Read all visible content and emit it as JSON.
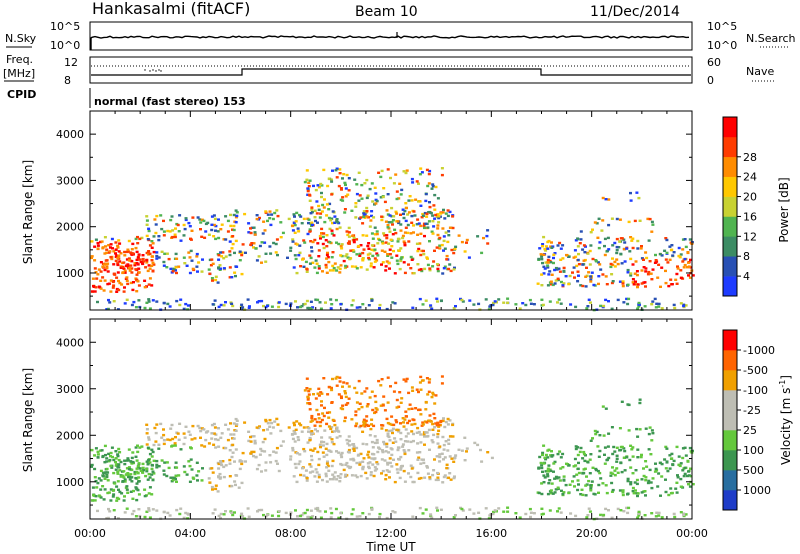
{
  "header": {
    "station": "Hankasalmi (fitACF)",
    "beam": "Beam 10",
    "date": "11/Dec/2014"
  },
  "strip": {
    "nsky_label": "N.Sky",
    "nsearch_label": "N.Search",
    "nsky_ticks": [
      "10^5",
      "10^0"
    ],
    "freq_label": "Freq.",
    "freq_unit": "[MHz]",
    "freq_ticks": [
      "12",
      "8"
    ],
    "nave_label": "Nave",
    "nave_ticks": [
      "60",
      "0"
    ],
    "cpid_label": "CPID",
    "cpid_text": "normal (fast stereo) 153"
  },
  "chart_data": [
    {
      "type": "heatmap",
      "name": "power",
      "ylabel": "Slant Range [km]",
      "xlabel": "",
      "ylim": [
        200,
        4500
      ],
      "yticks": [
        1000,
        2000,
        3000,
        4000
      ],
      "colorbar_label": "Power [dB]",
      "colorbar_ticks": [
        "4",
        "8",
        "12",
        "16",
        "20",
        "24",
        "28"
      ],
      "colors": [
        "#1e3cff",
        "#2850b4",
        "#3c8c64",
        "#50b450",
        "#c8d232",
        "#ffc800",
        "#ff8c00",
        "#ff3c00",
        "#ff0000"
      ]
    },
    {
      "type": "heatmap",
      "name": "velocity",
      "ylabel": "Slant Range [km]",
      "xlabel": "Time UT",
      "ylim": [
        200,
        4500
      ],
      "yticks": [
        1000,
        2000,
        3000,
        4000
      ],
      "xticks": [
        "00:00",
        "04:00",
        "08:00",
        "12:00",
        "16:00",
        "20:00",
        "00:00"
      ],
      "colorbar_label": "Velocity [m s",
      "colorbar_sup": "-1",
      "colorbar_close": "]",
      "colorbar_ticks": [
        "1000",
        "500",
        "100",
        "25",
        "-25",
        "-100",
        "-500",
        "-1000"
      ],
      "colors": [
        "#1e3cc8",
        "#286ea0",
        "#3c9650",
        "#64c83c",
        "#bebeb4",
        "#bebeb4",
        "#f0a000",
        "#ff6400",
        "#ff0000"
      ]
    }
  ],
  "colors": {
    "ground_scatter": "#bebeb4"
  }
}
